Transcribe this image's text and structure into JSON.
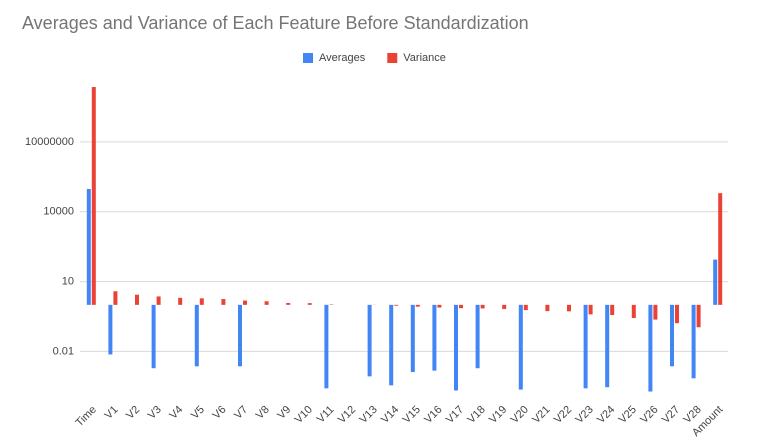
{
  "chart_data": {
    "type": "bar",
    "title": "Averages and Variance of Each Feature Before Standardization",
    "categories": [
      "Time",
      "V1",
      "V2",
      "V3",
      "V4",
      "V5",
      "V6",
      "V7",
      "V8",
      "V9",
      "V10",
      "V11",
      "V12",
      "V13",
      "V14",
      "V15",
      "V16",
      "V17",
      "V18",
      "V19",
      "V20",
      "V21",
      "V22",
      "V23",
      "V24",
      "V25",
      "V26",
      "V27",
      "V28",
      "Amount"
    ],
    "series": [
      {
        "name": "Averages",
        "color": "#4285f4",
        "values": [
          94814,
          0.0074,
          null,
          0.0019,
          null,
          0.0023,
          null,
          0.0023,
          null,
          null,
          null,
          0.00026,
          null,
          0.00085,
          0.00035,
          0.0013,
          0.0015,
          0.00021,
          0.0019,
          null,
          0.00023,
          null,
          null,
          0.00026,
          0.00029,
          null,
          0.00019,
          0.0023,
          0.0007,
          88
        ]
      },
      {
        "name": "Variance",
        "color": "#ea4335",
        "values": [
          2260000000,
          3.836,
          2.727,
          2.299,
          2.005,
          1.905,
          1.775,
          1.53,
          1.426,
          1.207,
          1.186,
          1.042,
          0.998,
          0.99,
          0.919,
          0.837,
          0.768,
          0.721,
          0.702,
          0.662,
          0.594,
          0.539,
          0.527,
          0.39,
          0.367,
          0.272,
          0.233,
          0.163,
          0.109,
          62560
        ]
      }
    ],
    "log_scale": true,
    "ylim": [
      0.0001,
      10000000000
    ],
    "yticks": [
      0.01,
      10,
      10000,
      10000000
    ],
    "grid": true,
    "legend": "top"
  }
}
